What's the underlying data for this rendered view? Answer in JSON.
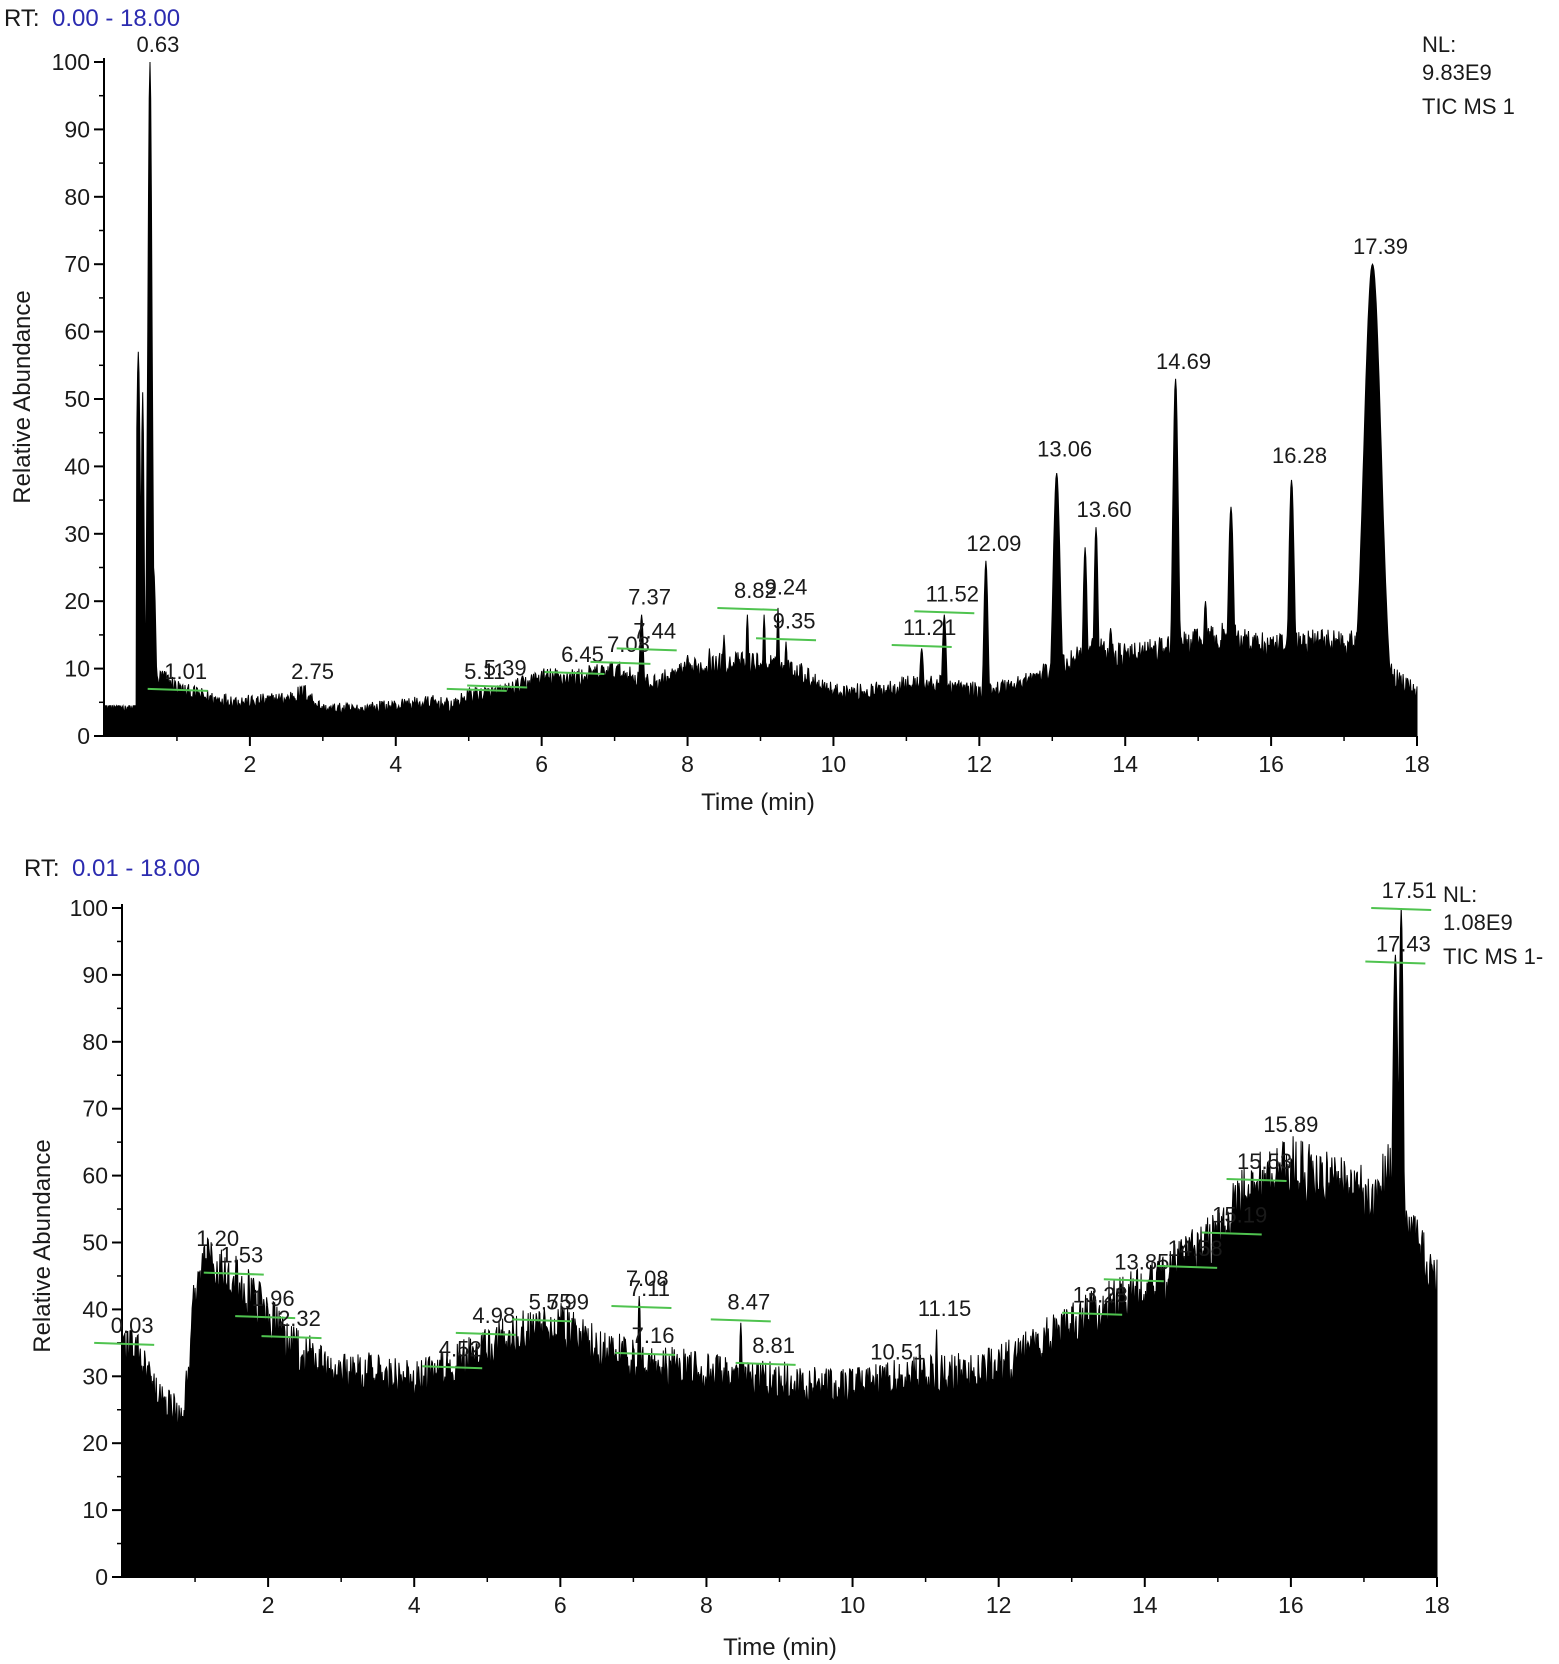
{
  "chart_data": [
    {
      "type": "area",
      "rt_label": "RT:",
      "rt_range": "0.00 - 18.00",
      "xlabel": "Time (min)",
      "ylabel": "Relative Abundance",
      "xlim": [
        0,
        18
      ],
      "ylim": [
        0,
        100
      ],
      "x_ticks": [
        "2",
        "4",
        "6",
        "8",
        "10",
        "12",
        "14",
        "16",
        "18"
      ],
      "y_ticks": [
        "0",
        "10",
        "20",
        "30",
        "40",
        "50",
        "60",
        "70",
        "80",
        "90",
        "100"
      ],
      "info": [
        "NL:",
        "9.83E9",
        "TIC  MS 1"
      ],
      "fill_color": "#000000",
      "marker_color": "#4fc34f",
      "baseline": [
        [
          0,
          4
        ],
        [
          0.4,
          4
        ],
        [
          0.45,
          6
        ],
        [
          0.8,
          8
        ],
        [
          1.1,
          6
        ],
        [
          1.5,
          5
        ],
        [
          2,
          4.5
        ],
        [
          2.5,
          5
        ],
        [
          2.75,
          6
        ],
        [
          3,
          3.5
        ],
        [
          3.5,
          3.5
        ],
        [
          4,
          4
        ],
        [
          4.5,
          4.5
        ],
        [
          4.8,
          4
        ],
        [
          5,
          5.5
        ],
        [
          5.5,
          6
        ],
        [
          6,
          8
        ],
        [
          6.5,
          8
        ],
        [
          7,
          9
        ],
        [
          7.5,
          7
        ],
        [
          8,
          9
        ],
        [
          8.5,
          10
        ],
        [
          9,
          10
        ],
        [
          9.5,
          9
        ],
        [
          10,
          6
        ],
        [
          10.5,
          6
        ],
        [
          11,
          7
        ],
        [
          11.5,
          7
        ],
        [
          12,
          6
        ],
        [
          12.5,
          7
        ],
        [
          13,
          9
        ],
        [
          13.5,
          12
        ],
        [
          14,
          11
        ],
        [
          14.5,
          12
        ],
        [
          15,
          13
        ],
        [
          15.5,
          14
        ],
        [
          16,
          12
        ],
        [
          16.5,
          13
        ],
        [
          17,
          13
        ],
        [
          17.2,
          13
        ],
        [
          17.7,
          8
        ],
        [
          18,
          6
        ]
      ],
      "peaks": [
        {
          "x": 0.47,
          "y": 57,
          "w": 0.03
        },
        {
          "x": 0.53,
          "y": 51,
          "w": 0.02
        },
        {
          "x": 0.63,
          "y": 100,
          "w": 0.03
        },
        {
          "x": 0.68,
          "y": 25,
          "w": 0.03
        },
        {
          "x": 7.37,
          "y": 18,
          "w": 0.03
        },
        {
          "x": 8.0,
          "y": 12,
          "w": 0.02
        },
        {
          "x": 8.3,
          "y": 13,
          "w": 0.02
        },
        {
          "x": 8.5,
          "y": 15,
          "w": 0.02
        },
        {
          "x": 8.82,
          "y": 18,
          "w": 0.02
        },
        {
          "x": 9.05,
          "y": 18,
          "w": 0.02
        },
        {
          "x": 9.24,
          "y": 19,
          "w": 0.02
        },
        {
          "x": 9.35,
          "y": 14,
          "w": 0.02
        },
        {
          "x": 11.21,
          "y": 13,
          "w": 0.03
        },
        {
          "x": 11.52,
          "y": 18,
          "w": 0.03
        },
        {
          "x": 12.09,
          "y": 26,
          "w": 0.03
        },
        {
          "x": 13.06,
          "y": 39,
          "w": 0.05
        },
        {
          "x": 13.45,
          "y": 28,
          "w": 0.03
        },
        {
          "x": 13.6,
          "y": 31,
          "w": 0.03
        },
        {
          "x": 13.8,
          "y": 16,
          "w": 0.03
        },
        {
          "x": 14.69,
          "y": 53,
          "w": 0.04
        },
        {
          "x": 15.1,
          "y": 20,
          "w": 0.03
        },
        {
          "x": 15.45,
          "y": 34,
          "w": 0.04
        },
        {
          "x": 16.28,
          "y": 38,
          "w": 0.04
        },
        {
          "x": 17.39,
          "y": 70,
          "w": 0.12
        }
      ],
      "labels": [
        {
          "text": "0.63",
          "x": 0.63,
          "y": 100,
          "marker": false
        },
        {
          "text": "1.01",
          "x": 1.01,
          "y": 7,
          "marker": true
        },
        {
          "text": "2.75",
          "x": 2.75,
          "y": 7,
          "marker": false
        },
        {
          "text": "5.11",
          "x": 5.11,
          "y": 7,
          "marker": true
        },
        {
          "text": "5.39",
          "x": 5.39,
          "y": 7.5,
          "marker": true
        },
        {
          "text": "6.45",
          "x": 6.45,
          "y": 9.5,
          "marker": true
        },
        {
          "text": "7.08",
          "x": 7.08,
          "y": 11,
          "marker": true
        },
        {
          "text": "7.37",
          "x": 7.37,
          "y": 18,
          "marker": false
        },
        {
          "text": "7.44",
          "x": 7.44,
          "y": 13,
          "marker": true
        },
        {
          "text": "8.82",
          "x": 8.82,
          "y": 19,
          "marker": true
        },
        {
          "text": "9.24",
          "x": 9.24,
          "y": 19.5,
          "marker": false
        },
        {
          "text": "9.35",
          "x": 9.35,
          "y": 14.5,
          "marker": true
        },
        {
          "text": "11.21",
          "x": 11.21,
          "y": 13.5,
          "marker": true
        },
        {
          "text": "11.52",
          "x": 11.52,
          "y": 18.5,
          "marker": true
        },
        {
          "text": "12.09",
          "x": 12.09,
          "y": 26,
          "marker": false
        },
        {
          "text": "13.06",
          "x": 13.06,
          "y": 40,
          "marker": false
        },
        {
          "text": "13.60",
          "x": 13.6,
          "y": 31,
          "marker": false
        },
        {
          "text": "14.69",
          "x": 14.69,
          "y": 53,
          "marker": false
        },
        {
          "text": "16.28",
          "x": 16.28,
          "y": 39,
          "marker": false
        },
        {
          "text": "17.39",
          "x": 17.39,
          "y": 70,
          "marker": false
        }
      ]
    },
    {
      "type": "area",
      "rt_label": "RT:",
      "rt_range": "0.01 - 18.00",
      "xlabel": "Time (min)",
      "ylabel": "Relative Abundance",
      "xlim": [
        0,
        18
      ],
      "ylim": [
        0,
        100
      ],
      "x_ticks": [
        "2",
        "4",
        "6",
        "8",
        "10",
        "12",
        "14",
        "16",
        "18"
      ],
      "y_ticks": [
        "0",
        "10",
        "20",
        "30",
        "40",
        "50",
        "60",
        "70",
        "80",
        "90",
        "100"
      ],
      "info": [
        "NL:",
        "1.08E9",
        "TIC  MS 1-"
      ],
      "fill_color": "#000000",
      "marker_color": "#4fc34f",
      "baseline": [
        [
          0,
          34
        ],
        [
          0.2,
          32
        ],
        [
          0.5,
          25
        ],
        [
          0.8,
          23
        ],
        [
          0.9,
          28
        ],
        [
          1.0,
          42
        ],
        [
          1.2,
          46
        ],
        [
          1.5,
          43
        ],
        [
          1.96,
          38
        ],
        [
          2.3,
          33
        ],
        [
          2.8,
          30
        ],
        [
          3.5,
          29
        ],
        [
          4.0,
          28
        ],
        [
          4.3,
          29
        ],
        [
          4.52,
          30
        ],
        [
          5.0,
          33
        ],
        [
          5.5,
          35
        ],
        [
          5.99,
          36
        ],
        [
          6.5,
          33
        ],
        [
          7.0,
          31
        ],
        [
          7.5,
          30
        ],
        [
          8.0,
          29
        ],
        [
          8.5,
          28
        ],
        [
          9.0,
          28
        ],
        [
          9.5,
          27
        ],
        [
          10.0,
          27
        ],
        [
          10.5,
          28
        ],
        [
          11.0,
          29
        ],
        [
          11.5,
          29
        ],
        [
          12.0,
          30
        ],
        [
          12.5,
          33
        ],
        [
          13.0,
          36
        ],
        [
          13.5,
          39
        ],
        [
          14.0,
          41
        ],
        [
          14.5,
          45
        ],
        [
          15.0,
          49
        ],
        [
          15.3,
          54
        ],
        [
          15.6,
          57
        ],
        [
          16.0,
          59
        ],
        [
          16.5,
          57
        ],
        [
          17.0,
          55
        ],
        [
          17.2,
          54
        ],
        [
          17.3,
          60
        ],
        [
          17.6,
          50
        ],
        [
          17.8,
          46
        ],
        [
          18.0,
          42
        ]
      ],
      "peaks": [
        {
          "x": 1.2,
          "y": 48,
          "w": 0.03
        },
        {
          "x": 1.53,
          "y": 45,
          "w": 0.02
        },
        {
          "x": 7.08,
          "y": 42,
          "w": 0.03
        },
        {
          "x": 8.47,
          "y": 38,
          "w": 0.03
        },
        {
          "x": 11.15,
          "y": 37,
          "w": 0.02
        },
        {
          "x": 13.28,
          "y": 40,
          "w": 0.02
        },
        {
          "x": 13.85,
          "y": 43,
          "w": 0.02
        },
        {
          "x": 14.58,
          "y": 47,
          "w": 0.02
        },
        {
          "x": 15.19,
          "y": 52,
          "w": 0.02
        },
        {
          "x": 15.53,
          "y": 59,
          "w": 0.02
        },
        {
          "x": 15.89,
          "y": 65,
          "w": 0.04
        },
        {
          "x": 17.43,
          "y": 93,
          "w": 0.05
        },
        {
          "x": 17.51,
          "y": 100,
          "w": 0.04
        }
      ],
      "labels": [
        {
          "text": "0.03",
          "x": 0.03,
          "y": 35,
          "marker": true
        },
        {
          "text": "1.20",
          "x": 1.2,
          "y": 48,
          "marker": false
        },
        {
          "text": "1.53",
          "x": 1.53,
          "y": 45.5,
          "marker": true
        },
        {
          "text": "1.96",
          "x": 1.96,
          "y": 39,
          "marker": true
        },
        {
          "text": "2.32",
          "x": 2.32,
          "y": 36,
          "marker": true
        },
        {
          "text": "4.98",
          "x": 4.98,
          "y": 36.5,
          "marker": true
        },
        {
          "text": "4.52",
          "x": 4.52,
          "y": 31.5,
          "marker": true
        },
        {
          "text": "5.75",
          "x": 5.75,
          "y": 38.5,
          "marker": true
        },
        {
          "text": "5.99",
          "x": 5.99,
          "y": 38.5,
          "marker": false
        },
        {
          "text": "7.08",
          "x": 7.08,
          "y": 42,
          "marker": false
        },
        {
          "text": "7.11",
          "x": 7.11,
          "y": 40.5,
          "marker": true
        },
        {
          "text": "7.16",
          "x": 7.16,
          "y": 33.5,
          "marker": true
        },
        {
          "text": "8.47",
          "x": 8.47,
          "y": 38.5,
          "marker": true
        },
        {
          "text": "8.81",
          "x": 8.81,
          "y": 32,
          "marker": true
        },
        {
          "text": "10.51",
          "x": 10.51,
          "y": 31,
          "marker": false
        },
        {
          "text": "11.15",
          "x": 11.15,
          "y": 37.5,
          "marker": false
        },
        {
          "text": "13.28",
          "x": 13.28,
          "y": 39.5,
          "marker": true
        },
        {
          "text": "13.85",
          "x": 13.85,
          "y": 44.5,
          "marker": true
        },
        {
          "text": "14.58",
          "x": 14.58,
          "y": 46.5,
          "marker": true
        },
        {
          "text": "15.19",
          "x": 15.19,
          "y": 51.5,
          "marker": true
        },
        {
          "text": "15.53",
          "x": 15.53,
          "y": 59.5,
          "marker": true
        },
        {
          "text": "15.89",
          "x": 15.89,
          "y": 65,
          "marker": false
        },
        {
          "text": "17.43",
          "x": 17.43,
          "y": 92,
          "marker": true
        },
        {
          "text": "17.51",
          "x": 17.51,
          "y": 100,
          "marker": true
        }
      ]
    }
  ]
}
